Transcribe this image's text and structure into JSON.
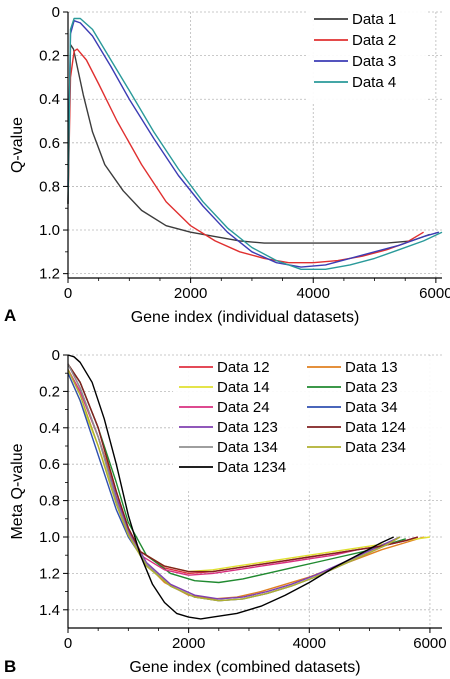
{
  "chart_data": [
    {
      "panel": "A",
      "type": "line",
      "xlabel": "Gene index (individual datasets)",
      "ylabel": "Q-value",
      "xlim": [
        0,
        6100
      ],
      "ylim": [
        0,
        1.22
      ],
      "y_inverted": true,
      "grid": true,
      "legend_position": "top-right",
      "xticks": [
        "0",
        "2000",
        "4000",
        "6000"
      ],
      "xtick_values": [
        0,
        2000,
        4000,
        6000
      ],
      "yticks": [
        "0",
        "0.2",
        "0.4",
        "0.6",
        "0.8",
        "1.0",
        "1.2"
      ],
      "ytick_values": [
        0,
        0.2,
        0.4,
        0.6,
        0.8,
        1.0,
        1.2
      ],
      "series": [
        {
          "name": "Data 1",
          "color": "#3c3c3c",
          "x": [
            0,
            40,
            90,
            150,
            250,
            400,
            600,
            900,
            1200,
            1600,
            2000,
            2400,
            2800,
            3200,
            3600,
            4000,
            4400,
            4800,
            5200,
            5600,
            5800,
            5900
          ],
          "y": [
            0.88,
            0.15,
            0.17,
            0.25,
            0.38,
            0.55,
            0.7,
            0.82,
            0.91,
            0.98,
            1.01,
            1.03,
            1.05,
            1.06,
            1.06,
            1.06,
            1.06,
            1.06,
            1.06,
            1.05,
            1.03,
            1.02
          ]
        },
        {
          "name": "Data 2",
          "color": "#e03030",
          "x": [
            0,
            40,
            100,
            150,
            300,
            500,
            800,
            1200,
            1600,
            2000,
            2400,
            2800,
            3200,
            3600,
            4000,
            4400,
            4800,
            5200,
            5500,
            5800
          ],
          "y": [
            0.88,
            0.3,
            0.18,
            0.17,
            0.22,
            0.33,
            0.5,
            0.7,
            0.87,
            0.98,
            1.05,
            1.1,
            1.13,
            1.15,
            1.15,
            1.14,
            1.12,
            1.09,
            1.06,
            1.01
          ]
        },
        {
          "name": "Data 3",
          "color": "#3c3cb4",
          "x": [
            0,
            40,
            100,
            200,
            400,
            700,
            1000,
            1400,
            1800,
            2200,
            2600,
            3000,
            3400,
            3800,
            4200,
            4600,
            5000,
            5400,
            5800,
            6050
          ],
          "y": [
            0.8,
            0.1,
            0.04,
            0.05,
            0.11,
            0.25,
            0.4,
            0.58,
            0.75,
            0.89,
            1.01,
            1.1,
            1.15,
            1.17,
            1.16,
            1.13,
            1.1,
            1.07,
            1.03,
            1.01
          ]
        },
        {
          "name": "Data 4",
          "color": "#2a9a9a",
          "x": [
            0,
            40,
            100,
            200,
            400,
            700,
            1000,
            1400,
            1800,
            2200,
            2600,
            3000,
            3400,
            3800,
            4200,
            4600,
            5000,
            5400,
            5800,
            6100
          ],
          "y": [
            0.88,
            0.08,
            0.03,
            0.03,
            0.08,
            0.22,
            0.36,
            0.55,
            0.72,
            0.87,
            0.99,
            1.08,
            1.14,
            1.18,
            1.18,
            1.16,
            1.13,
            1.09,
            1.05,
            1.01
          ]
        }
      ]
    },
    {
      "panel": "B",
      "type": "line",
      "xlabel": "Gene index (combined datasets)",
      "ylabel": "Meta Q-value",
      "xlim": [
        0,
        6200
      ],
      "ylim": [
        0,
        1.5
      ],
      "y_inverted": true,
      "grid": true,
      "legend_position": "top-right",
      "xticks": [
        "0",
        "2000",
        "4000",
        "6000"
      ],
      "xtick_values": [
        0,
        2000,
        4000,
        6000
      ],
      "yticks": [
        "0",
        "0.2",
        "0.4",
        "0.6",
        "0.8",
        "1.0",
        "1.2",
        "1.4"
      ],
      "ytick_values": [
        0,
        0.2,
        0.4,
        0.6,
        0.8,
        1.0,
        1.2,
        1.4
      ],
      "series": [
        {
          "name": "Data 12",
          "color": "#e03040",
          "x": [
            0,
            200,
            500,
            800,
            1000,
            1200,
            1600,
            2000,
            2400,
            2800,
            3200,
            3600,
            4000,
            4400,
            4800,
            5200,
            5600,
            5800
          ],
          "y": [
            0.05,
            0.15,
            0.4,
            0.75,
            0.95,
            1.08,
            1.17,
            1.2,
            1.19,
            1.17,
            1.15,
            1.13,
            1.11,
            1.09,
            1.07,
            1.05,
            1.02,
            1.0
          ]
        },
        {
          "name": "Data 13",
          "color": "#e08020",
          "x": [
            0,
            200,
            500,
            800,
            1000,
            1300,
            1600,
            2000,
            2400,
            2800,
            3200,
            3600,
            4000,
            4400,
            4800,
            5200,
            5600,
            5900
          ],
          "y": [
            0.08,
            0.2,
            0.45,
            0.75,
            0.95,
            1.15,
            1.25,
            1.32,
            1.34,
            1.33,
            1.3,
            1.26,
            1.22,
            1.17,
            1.12,
            1.07,
            1.03,
            1.0
          ]
        },
        {
          "name": "Data 14",
          "color": "#e0e030",
          "x": [
            0,
            200,
            500,
            800,
            1000,
            1200,
            1600,
            2000,
            2400,
            2800,
            3200,
            3600,
            4000,
            4400,
            4800,
            5200,
            5600,
            6000
          ],
          "y": [
            0.1,
            0.25,
            0.5,
            0.8,
            0.97,
            1.08,
            1.16,
            1.19,
            1.18,
            1.16,
            1.14,
            1.12,
            1.1,
            1.08,
            1.06,
            1.04,
            1.02,
            1.0
          ]
        },
        {
          "name": "Data 23",
          "color": "#208a30",
          "x": [
            0,
            200,
            500,
            800,
            1000,
            1300,
            1700,
            2100,
            2500,
            2900,
            3300,
            3700,
            4100,
            4500,
            4900,
            5300,
            5600
          ],
          "y": [
            0.05,
            0.15,
            0.4,
            0.7,
            0.92,
            1.1,
            1.2,
            1.24,
            1.25,
            1.23,
            1.2,
            1.17,
            1.14,
            1.11,
            1.08,
            1.04,
            1.01
          ]
        },
        {
          "name": "Data 24",
          "color": "#d83080",
          "x": [
            0,
            200,
            500,
            800,
            1000,
            1200,
            1600,
            2000,
            2400,
            2800,
            3200,
            3600,
            4000,
            4400,
            4800,
            5200,
            5600,
            5800
          ],
          "y": [
            0.08,
            0.2,
            0.45,
            0.78,
            0.97,
            1.1,
            1.18,
            1.21,
            1.2,
            1.18,
            1.16,
            1.14,
            1.12,
            1.1,
            1.07,
            1.05,
            1.02,
            1.0
          ]
        },
        {
          "name": "Data 34",
          "color": "#3050b0",
          "x": [
            0,
            200,
            500,
            800,
            1000,
            1300,
            1700,
            2100,
            2500,
            2900,
            3300,
            3700,
            4100,
            4500,
            4900,
            5300,
            5500
          ],
          "y": [
            0.1,
            0.25,
            0.55,
            0.85,
            1.0,
            1.15,
            1.27,
            1.33,
            1.35,
            1.34,
            1.31,
            1.27,
            1.22,
            1.16,
            1.1,
            1.04,
            1.0
          ]
        },
        {
          "name": "Data 123",
          "color": "#8040b0",
          "x": [
            0,
            200,
            500,
            800,
            1000,
            1300,
            1700,
            2100,
            2500,
            2900,
            3300,
            3700,
            4100,
            4500,
            4900,
            5300,
            5500
          ],
          "y": [
            0.05,
            0.18,
            0.45,
            0.78,
            0.96,
            1.14,
            1.26,
            1.32,
            1.34,
            1.33,
            1.3,
            1.26,
            1.21,
            1.15,
            1.09,
            1.03,
            1.0
          ]
        },
        {
          "name": "Data 124",
          "color": "#802020",
          "x": [
            0,
            200,
            500,
            800,
            1000,
            1200,
            1600,
            2000,
            2400,
            2800,
            3200,
            3600,
            4000,
            4400,
            4800,
            5200,
            5600,
            5800
          ],
          "y": [
            0.05,
            0.15,
            0.4,
            0.75,
            0.95,
            1.08,
            1.16,
            1.19,
            1.19,
            1.17,
            1.15,
            1.13,
            1.11,
            1.09,
            1.07,
            1.05,
            1.02,
            1.0
          ]
        },
        {
          "name": "Data 134",
          "color": "#909090",
          "x": [
            0,
            200,
            500,
            800,
            1000,
            1300,
            1700,
            2100,
            2500,
            2900,
            3300,
            3700,
            4100,
            4500,
            4900,
            5300,
            5500
          ],
          "y": [
            0.05,
            0.18,
            0.45,
            0.8,
            0.98,
            1.15,
            1.27,
            1.33,
            1.35,
            1.34,
            1.31,
            1.27,
            1.22,
            1.16,
            1.1,
            1.04,
            1.0
          ]
        },
        {
          "name": "Data 234",
          "color": "#b0b030",
          "x": [
            0,
            200,
            500,
            800,
            1000,
            1300,
            1700,
            2100,
            2500,
            2900,
            3300,
            3700,
            4100,
            4500,
            4900,
            5300,
            5500
          ],
          "y": [
            0.08,
            0.22,
            0.5,
            0.82,
            0.99,
            1.16,
            1.27,
            1.33,
            1.35,
            1.34,
            1.31,
            1.27,
            1.22,
            1.16,
            1.1,
            1.04,
            1.0
          ]
        },
        {
          "name": "Data 1234",
          "color": "#000000",
          "x": [
            0,
            100,
            200,
            400,
            600,
            800,
            1000,
            1200,
            1400,
            1600,
            1800,
            2000,
            2200,
            2400,
            2800,
            3200,
            3600,
            4000,
            4400,
            4800,
            5200,
            5400
          ],
          "y": [
            0.0,
            0.01,
            0.04,
            0.15,
            0.35,
            0.6,
            0.88,
            1.1,
            1.26,
            1.36,
            1.42,
            1.44,
            1.45,
            1.44,
            1.42,
            1.38,
            1.32,
            1.25,
            1.17,
            1.1,
            1.03,
            1.0
          ]
        }
      ]
    }
  ]
}
